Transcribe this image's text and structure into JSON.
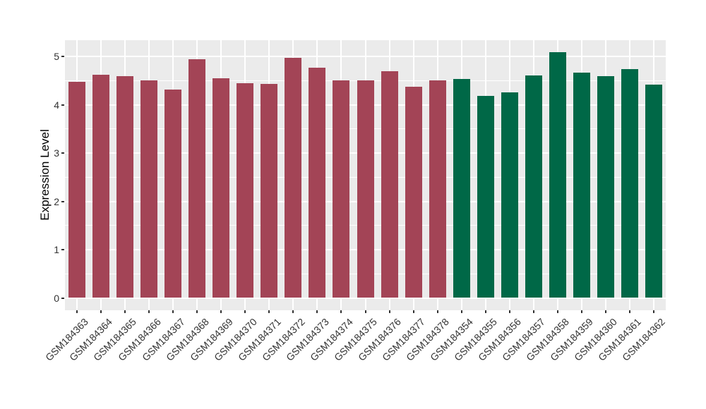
{
  "chart_data": {
    "type": "bar",
    "title": "",
    "xlabel": "",
    "ylabel": "Expression Level",
    "categories": [
      "GSM184363",
      "GSM184364",
      "GSM184365",
      "GSM184366",
      "GSM184367",
      "GSM184368",
      "GSM184369",
      "GSM184370",
      "GSM184371",
      "GSM184372",
      "GSM184373",
      "GSM184374",
      "GSM184375",
      "GSM184376",
      "GSM184377",
      "GSM184378",
      "GSM184354",
      "GSM184355",
      "GSM184356",
      "GSM184357",
      "GSM184358",
      "GSM184359",
      "GSM184360",
      "GSM184361",
      "GSM184362"
    ],
    "values": [
      4.47,
      4.62,
      4.59,
      4.51,
      4.31,
      4.94,
      4.55,
      4.45,
      4.43,
      4.97,
      4.77,
      4.51,
      4.51,
      4.69,
      4.37,
      4.51,
      4.54,
      4.18,
      4.26,
      4.61,
      5.09,
      4.67,
      4.59,
      4.74,
      4.41
    ],
    "groups": [
      "maroon",
      "maroon",
      "maroon",
      "maroon",
      "maroon",
      "maroon",
      "maroon",
      "maroon",
      "maroon",
      "maroon",
      "maroon",
      "maroon",
      "maroon",
      "maroon",
      "maroon",
      "maroon",
      "green",
      "green",
      "green",
      "green",
      "green",
      "green",
      "green",
      "green",
      "green"
    ],
    "group_colors": {
      "maroon": "#A34456",
      "green": "#006847"
    },
    "yticks": [
      0,
      1,
      2,
      3,
      4,
      5
    ],
    "minor_yticks": [
      0.5,
      1.5,
      2.5,
      3.5,
      4.5
    ],
    "ylim": [
      0,
      5.34
    ],
    "grid": "major and minor horizontal white lines, vertical white line at each category",
    "legend": "none"
  },
  "style": {
    "panel_bg": "#EBEBEB",
    "grid_color": "#FFFFFF",
    "tick_color": "#333333",
    "axis_text_color": "#333333",
    "axis_title_color": "#000000"
  }
}
